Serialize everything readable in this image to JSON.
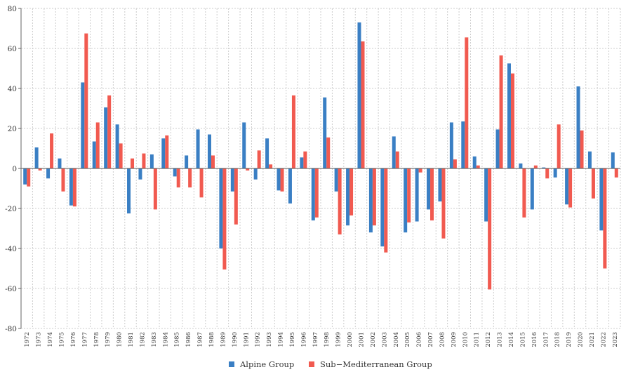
{
  "chart_data": {
    "type": "bar",
    "title": "",
    "xlabel": "",
    "ylabel": "",
    "ylim": [
      -80,
      80
    ],
    "yticks": [
      -80,
      -60,
      -40,
      -20,
      0,
      20,
      40,
      60,
      80
    ],
    "grid": true,
    "legend_position": "bottom-center",
    "categories": [
      "1972",
      "1973",
      "1974",
      "1975",
      "1976",
      "1977",
      "1978",
      "1979",
      "1980",
      "1981",
      "1982",
      "1983",
      "1984",
      "1985",
      "1986",
      "1987",
      "1988",
      "1989",
      "1990",
      "1991",
      "1992",
      "1993",
      "1994",
      "1995",
      "1996",
      "1997",
      "1998",
      "1999",
      "2000",
      "2001",
      "2002",
      "2003",
      "2004",
      "2005",
      "2006",
      "2007",
      "2008",
      "2009",
      "2010",
      "2011",
      "2012",
      "2013",
      "2014",
      "2015",
      "2016",
      "2017",
      "2018",
      "2019",
      "2020",
      "2021",
      "2022",
      "2023"
    ],
    "series": [
      {
        "name": "Alpine Group",
        "color": "#3a7fc4",
        "values": [
          -8,
          10.5,
          -5,
          5,
          -18.5,
          43,
          13.5,
          30.5,
          22,
          -22.5,
          -5.5,
          7,
          15,
          -4,
          6.5,
          19.5,
          17,
          -40,
          -11.5,
          23,
          -5.5,
          15,
          -11,
          -17.5,
          5.5,
          -26,
          35.5,
          -11.5,
          -28.5,
          73,
          -32,
          -39,
          16,
          -32,
          -26.5,
          -20.5,
          -16.5,
          23,
          23.5,
          6,
          -26.5,
          19.5,
          52.5,
          2.5,
          -20.5,
          0.5,
          -4.5,
          -18,
          41,
          8.5,
          -31,
          8
        ]
      },
      {
        "name": "Sub−Mediterranean Group",
        "color": "#f15a50",
        "values": [
          -9,
          -1,
          17.5,
          -11.5,
          -19,
          67.5,
          23,
          36.5,
          12.5,
          5,
          7.5,
          -20.5,
          16.5,
          -9.5,
          -9.5,
          -14.5,
          6.5,
          -50.5,
          -28,
          -1,
          9,
          2,
          -11.5,
          36.5,
          8.5,
          -24.5,
          15.5,
          -33,
          -23.5,
          63.5,
          -28.5,
          -42,
          8.5,
          -27,
          -2,
          -26,
          -35,
          4.5,
          65.5,
          1.5,
          -60.5,
          56.5,
          47.5,
          -24.5,
          1.5,
          -5,
          22,
          -19.5,
          19,
          -15,
          -50,
          -4.5
        ]
      }
    ]
  }
}
